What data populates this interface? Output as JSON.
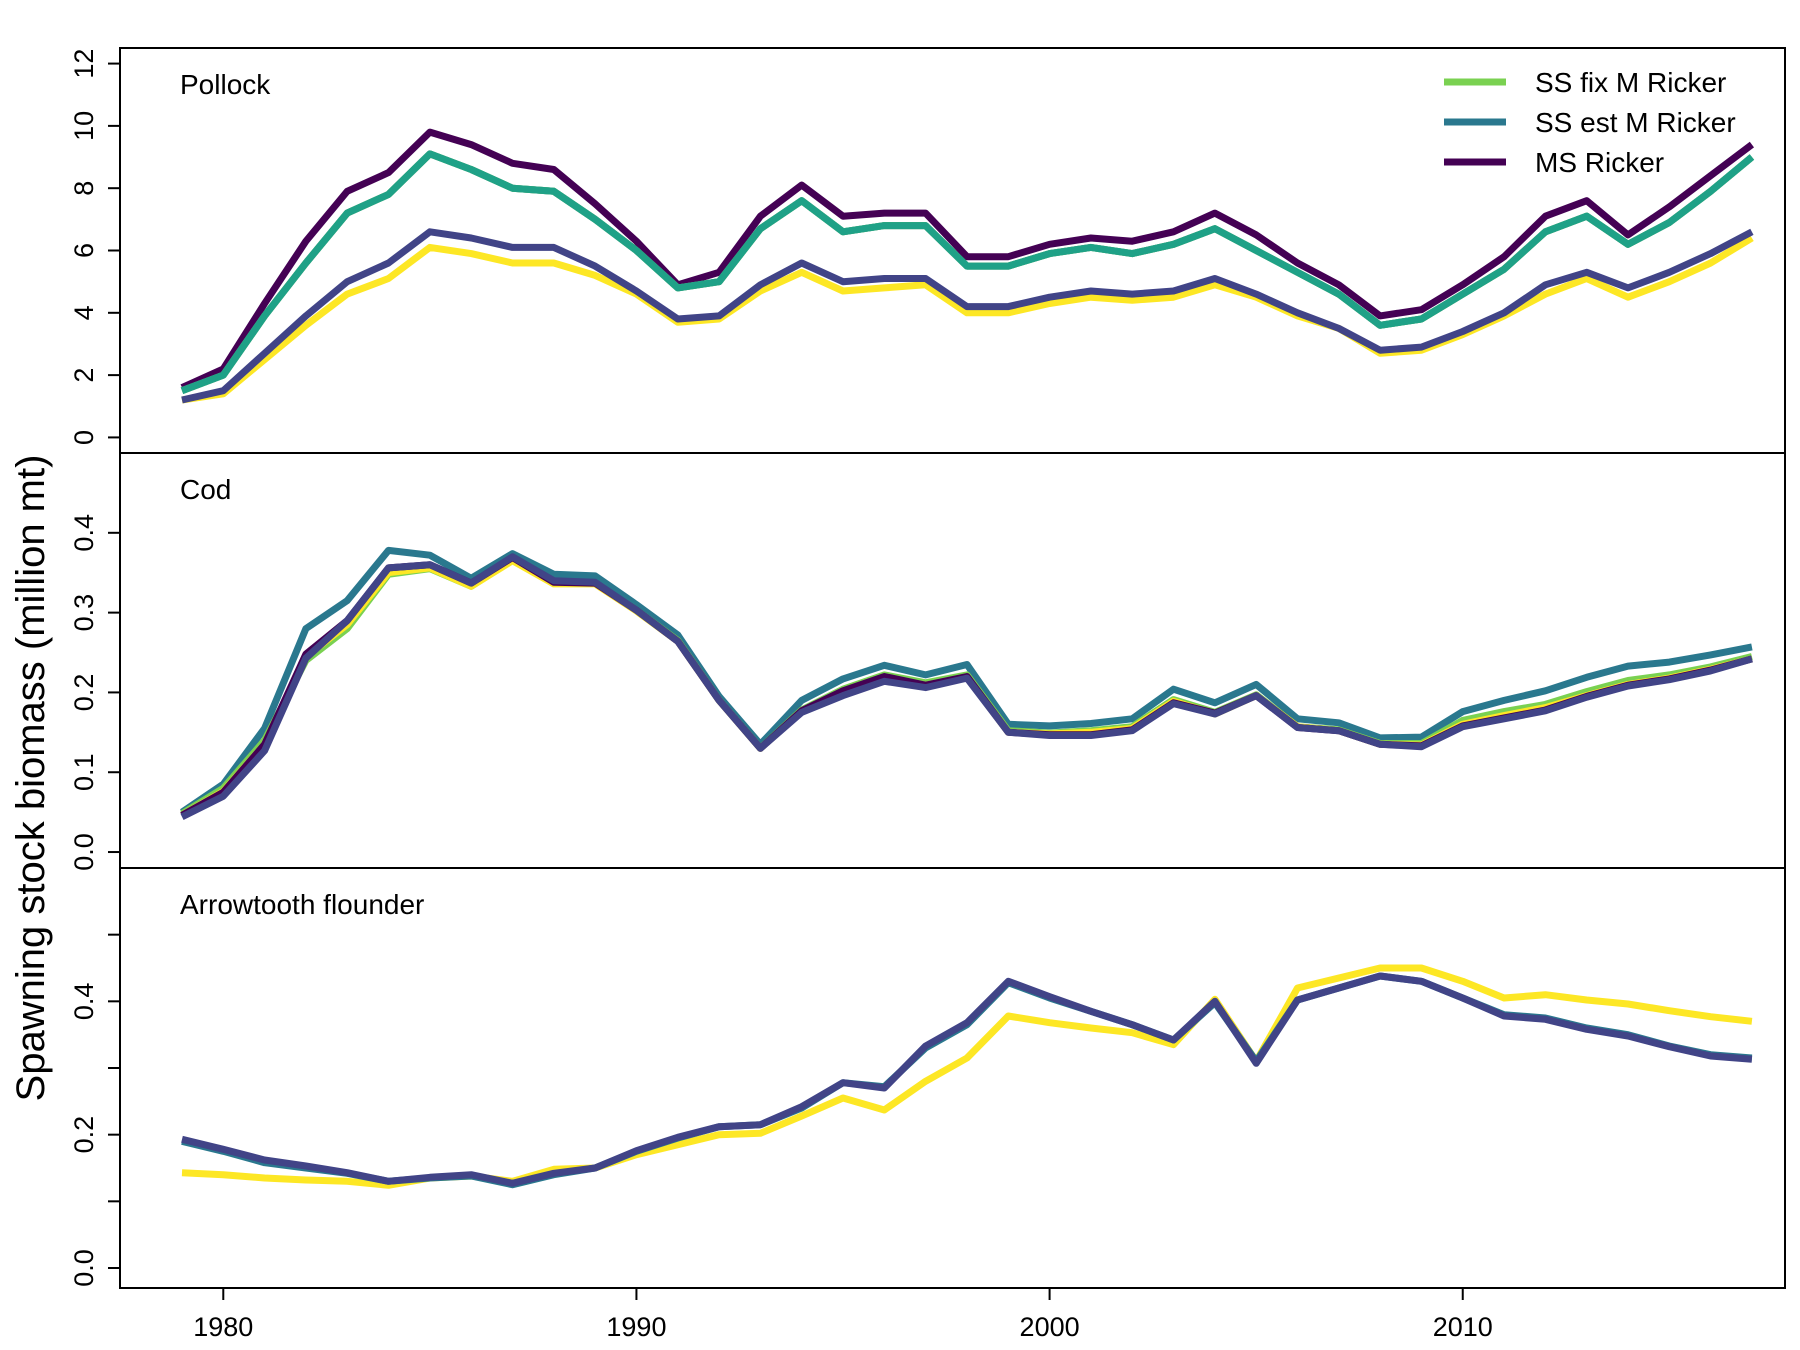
{
  "chart_data": {
    "type": "line",
    "ylabel": "Spawning stock biomass (million mt)",
    "x": [
      1979,
      1980,
      1981,
      1982,
      1983,
      1984,
      1985,
      1986,
      1987,
      1988,
      1989,
      1990,
      1991,
      1992,
      1993,
      1994,
      1995,
      1996,
      1997,
      1998,
      1999,
      2000,
      2001,
      2002,
      2003,
      2004,
      2005,
      2006,
      2007,
      2008,
      2009,
      2010,
      2011,
      2012,
      2013,
      2014,
      2015,
      2016,
      2017
    ],
    "xlim": [
      1977.5,
      2017.8
    ],
    "xticks": [
      1980,
      1990,
      2000,
      2010
    ],
    "xtick_labels": [
      "1980",
      "1990",
      "2000",
      "2010"
    ],
    "grid": false,
    "legend": {
      "placement": "top-right",
      "entries": [
        {
          "label": "SS fix M Ricker",
          "color": "#7AD151"
        },
        {
          "label": "SS est M Ricker",
          "color": "#2A788E"
        },
        {
          "label": "MS Ricker",
          "color": "#440154"
        }
      ]
    },
    "panels": [
      {
        "title": "Pollock",
        "ylim": [
          -0.5,
          12.5
        ],
        "yticks": [
          0,
          2,
          4,
          6,
          8,
          10,
          12
        ],
        "ytick_labels": [
          "0",
          "2",
          "4",
          "6",
          "8",
          "10",
          "12"
        ],
        "series": [
          {
            "name": "MS Ricker",
            "color": "#440154",
            "values": [
              1.6,
              2.2,
              4.3,
              6.3,
              7.9,
              8.5,
              9.8,
              9.4,
              8.8,
              8.6,
              7.5,
              6.3,
              4.9,
              5.3,
              7.1,
              8.1,
              7.1,
              7.2,
              7.2,
              5.8,
              5.8,
              6.2,
              6.4,
              6.3,
              6.6,
              7.2,
              6.5,
              5.6,
              4.9,
              3.9,
              4.1,
              4.9,
              5.8,
              7.1,
              7.6,
              6.5,
              7.4,
              8.4,
              9.4
            ]
          },
          {
            "name": "SS est M Ricker",
            "color": "#2A788E",
            "values": [
              1.5,
              2.0,
              3.9,
              5.6,
              7.2,
              7.8,
              9.1,
              8.6,
              8.0,
              7.9,
              7.0,
              6.0,
              4.8,
              5.0,
              6.7,
              7.6,
              6.6,
              6.8,
              6.8,
              5.5,
              5.5,
              5.9,
              6.1,
              5.9,
              6.2,
              6.7,
              6.0,
              5.3,
              4.6,
              3.6,
              3.8,
              4.6,
              5.4,
              6.6,
              7.1,
              6.2,
              6.9,
              7.9,
              9.0
            ]
          },
          {
            "name": "SS fix M Ricker",
            "color": "#7AD151",
            "values": [
              1.5,
              2.0,
              3.9,
              5.6,
              7.2,
              7.8,
              9.1,
              8.6,
              8.0,
              7.9,
              7.0,
              6.0,
              4.8,
              5.0,
              6.7,
              7.6,
              6.6,
              6.8,
              6.8,
              5.5,
              5.5,
              5.9,
              6.1,
              5.9,
              6.2,
              6.7,
              6.0,
              5.3,
              4.6,
              3.6,
              3.8,
              4.6,
              5.4,
              6.6,
              7.1,
              6.2,
              6.9,
              7.9,
              9.0
            ]
          },
          {
            "name": "",
            "color": "#1FA187",
            "values": [
              1.5,
              2.0,
              3.9,
              5.6,
              7.2,
              7.8,
              9.1,
              8.6,
              8.0,
              7.9,
              7.0,
              6.0,
              4.8,
              5.0,
              6.7,
              7.6,
              6.6,
              6.8,
              6.8,
              5.5,
              5.5,
              5.9,
              6.1,
              5.9,
              6.2,
              6.7,
              6.0,
              5.3,
              4.6,
              3.6,
              3.8,
              4.6,
              5.4,
              6.6,
              7.1,
              6.2,
              6.9,
              7.9,
              9.0
            ]
          },
          {
            "name": "",
            "color": "#FDE725",
            "values": [
              1.2,
              1.4,
              2.5,
              3.6,
              4.6,
              5.1,
              6.1,
              5.9,
              5.6,
              5.6,
              5.2,
              4.6,
              3.7,
              3.8,
              4.7,
              5.3,
              4.7,
              4.8,
              4.9,
              4.0,
              4.0,
              4.3,
              4.5,
              4.4,
              4.5,
              4.9,
              4.5,
              3.9,
              3.5,
              2.7,
              2.8,
              3.3,
              3.9,
              4.6,
              5.1,
              4.5,
              5.0,
              5.6,
              6.4
            ]
          },
          {
            "name": "",
            "color": "#414487",
            "values": [
              1.2,
              1.5,
              2.7,
              3.9,
              5.0,
              5.6,
              6.6,
              6.4,
              6.1,
              6.1,
              5.5,
              4.7,
              3.8,
              3.9,
              4.9,
              5.6,
              5.0,
              5.1,
              5.1,
              4.2,
              4.2,
              4.5,
              4.7,
              4.6,
              4.7,
              5.1,
              4.6,
              4.0,
              3.5,
              2.8,
              2.9,
              3.4,
              4.0,
              4.9,
              5.3,
              4.8,
              5.3,
              5.9,
              6.6
            ]
          }
        ]
      },
      {
        "title": "Cod",
        "ylim": [
          -0.02,
          0.5
        ],
        "yticks": [
          0.0,
          0.1,
          0.2,
          0.3,
          0.4
        ],
        "ytick_labels": [
          "0.0",
          "0.1",
          "0.2",
          "0.3",
          "0.4"
        ],
        "series": [
          {
            "name": "SS est M Ricker",
            "color": "#2A788E",
            "values": [
              0.05,
              0.085,
              0.155,
              0.28,
              0.315,
              0.378,
              0.372,
              0.343,
              0.374,
              0.348,
              0.346,
              0.31,
              0.272,
              0.195,
              0.135,
              0.19,
              0.217,
              0.234,
              0.222,
              0.235,
              0.16,
              0.158,
              0.161,
              0.167,
              0.204,
              0.187,
              0.21,
              0.167,
              0.162,
              0.143,
              0.144,
              0.176,
              0.19,
              0.202,
              0.219,
              0.233,
              0.238,
              0.247,
              0.257
            ]
          },
          {
            "name": "SS fix M Ricker",
            "color": "#7AD151",
            "values": [
              0.048,
              0.08,
              0.14,
              0.24,
              0.28,
              0.348,
              0.355,
              0.333,
              0.366,
              0.337,
              0.337,
              0.303,
              0.265,
              0.19,
              0.13,
              0.178,
              0.204,
              0.222,
              0.212,
              0.222,
              0.152,
              0.149,
              0.152,
              0.157,
              0.191,
              0.175,
              0.197,
              0.157,
              0.153,
              0.136,
              0.136,
              0.165,
              0.176,
              0.185,
              0.201,
              0.215,
              0.222,
              0.232,
              0.245
            ]
          },
          {
            "name": "",
            "color": "#FDE725",
            "values": [
              0.046,
              0.076,
              0.135,
              0.245,
              0.285,
              0.35,
              0.356,
              0.333,
              0.365,
              0.336,
              0.336,
              0.302,
              0.264,
              0.19,
              0.13,
              0.176,
              0.2,
              0.218,
              0.209,
              0.219,
              0.15,
              0.148,
              0.15,
              0.155,
              0.189,
              0.173,
              0.196,
              0.157,
              0.152,
              0.135,
              0.134,
              0.16,
              0.171,
              0.181,
              0.196,
              0.21,
              0.218,
              0.229,
              0.242
            ]
          },
          {
            "name": "MS Ricker",
            "color": "#440154",
            "values": [
              0.046,
              0.075,
              0.135,
              0.248,
              0.29,
              0.356,
              0.36,
              0.337,
              0.369,
              0.338,
              0.337,
              0.303,
              0.264,
              0.19,
              0.13,
              0.177,
              0.202,
              0.22,
              0.209,
              0.22,
              0.15,
              0.147,
              0.147,
              0.153,
              0.187,
              0.174,
              0.196,
              0.156,
              0.152,
              0.135,
              0.133,
              0.158,
              0.168,
              0.178,
              0.195,
              0.209,
              0.217,
              0.228,
              0.242
            ]
          },
          {
            "name": "",
            "color": "#414487",
            "values": [
              0.044,
              0.07,
              0.127,
              0.243,
              0.29,
              0.356,
              0.36,
              0.337,
              0.37,
              0.34,
              0.338,
              0.303,
              0.264,
              0.19,
              0.13,
              0.175,
              0.196,
              0.214,
              0.206,
              0.218,
              0.15,
              0.146,
              0.146,
              0.152,
              0.186,
              0.173,
              0.196,
              0.156,
              0.152,
              0.135,
              0.132,
              0.157,
              0.167,
              0.177,
              0.194,
              0.208,
              0.216,
              0.227,
              0.242
            ]
          }
        ]
      },
      {
        "title": "Arrowtooth flounder",
        "ylim": [
          -0.03,
          0.6
        ],
        "yticks": [
          0.0,
          0.1,
          0.2,
          0.3,
          0.4,
          0.5
        ],
        "ytick_labels": [
          "0.0",
          "",
          "0.2",
          "",
          "0.4",
          ""
        ],
        "series": [
          {
            "name": "",
            "color": "#FDE725",
            "values": [
              0.143,
              0.14,
              0.135,
              0.132,
              0.13,
              0.124,
              0.135,
              0.138,
              0.13,
              0.148,
              0.15,
              0.17,
              0.185,
              0.2,
              0.202,
              0.228,
              0.255,
              0.237,
              0.28,
              0.315,
              0.378,
              0.368,
              0.36,
              0.353,
              0.335,
              0.403,
              0.31,
              0.42,
              0.435,
              0.45,
              0.45,
              0.43,
              0.405,
              0.41,
              0.402,
              0.396,
              0.386,
              0.377,
              0.37
            ]
          },
          {
            "name": "SS est M Ricker",
            "color": "#2A788E",
            "values": [
              0.19,
              0.175,
              0.158,
              0.15,
              0.142,
              0.13,
              0.135,
              0.138,
              0.125,
              0.14,
              0.15,
              0.175,
              0.195,
              0.212,
              0.215,
              0.24,
              0.278,
              0.272,
              0.33,
              0.365,
              0.428,
              0.405,
              0.385,
              0.365,
              0.342,
              0.398,
              0.31,
              0.402,
              0.42,
              0.438,
              0.43,
              0.405,
              0.38,
              0.375,
              0.36,
              0.35,
              0.333,
              0.32,
              0.315
            ]
          },
          {
            "name": "",
            "color": "#414487",
            "values": [
              0.193,
              0.178,
              0.162,
              0.153,
              0.143,
              0.13,
              0.136,
              0.14,
              0.127,
              0.142,
              0.15,
              0.176,
              0.196,
              0.212,
              0.215,
              0.242,
              0.278,
              0.27,
              0.333,
              0.368,
              0.43,
              0.407,
              0.385,
              0.365,
              0.342,
              0.4,
              0.307,
              0.402,
              0.42,
              0.438,
              0.43,
              0.405,
              0.378,
              0.373,
              0.358,
              0.348,
              0.332,
              0.318,
              0.313
            ]
          }
        ]
      }
    ]
  }
}
